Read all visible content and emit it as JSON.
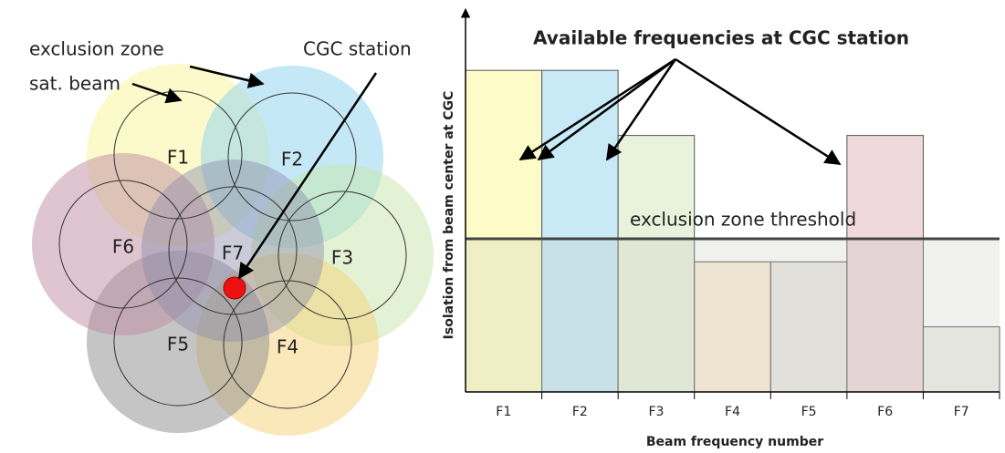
{
  "diagram": {
    "beams": [
      "F1",
      "F2",
      "F3",
      "F4",
      "F5",
      "F6",
      "F7"
    ],
    "labels": {
      "exclusion_zone": "exclusion zone",
      "sat_beam": "sat. beam",
      "cgc_station": "CGC station"
    }
  },
  "chart_data": {
    "type": "bar",
    "title": "Available frequencies at CGC station",
    "x_label": "Beam frequency number",
    "y_label": "Isolation from beam center at CGC",
    "categories": [
      "F1",
      "F2",
      "F3",
      "F4",
      "F5",
      "F6",
      "F7"
    ],
    "values": [
      8.4,
      8.4,
      6.7,
      3.4,
      3.4,
      6.7,
      1.7
    ],
    "colors": [
      "#fdfcc8",
      "#c8e9f6",
      "#e8f2dd",
      "#f8ecd7",
      "#ebe9e4",
      "#efd9dd",
      "#efefea"
    ],
    "ylim": [
      0,
      10
    ],
    "threshold": {
      "label": "exclusion zone threshold",
      "value": 4.0
    }
  }
}
